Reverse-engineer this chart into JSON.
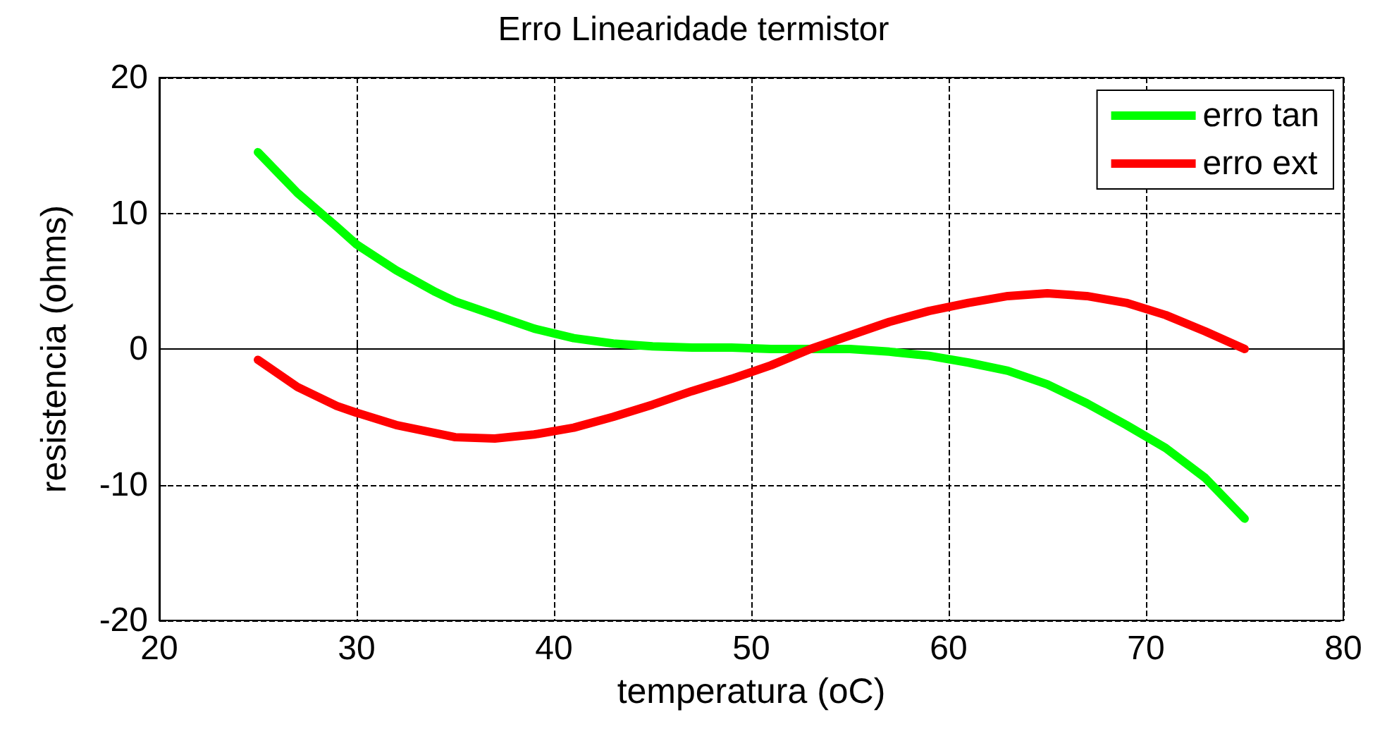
{
  "chart_data": {
    "type": "line",
    "title": "Erro Linearidade termistor",
    "xlabel": "temperatura (oC)",
    "ylabel": "resistencia (ohms)",
    "x": [
      25,
      27,
      29,
      30,
      32,
      34,
      35,
      37,
      39,
      41,
      43,
      45,
      47,
      49,
      51,
      53,
      55,
      57,
      59,
      61,
      63,
      65,
      67,
      69,
      71,
      73,
      75
    ],
    "series": [
      {
        "name": "erro tan",
        "color": "#00ff00",
        "values": [
          14.5,
          11.5,
          9,
          7.7,
          5.8,
          4.2,
          3.5,
          2.5,
          1.5,
          0.8,
          0.4,
          0.2,
          0.1,
          0.1,
          0,
          0,
          0,
          -0.2,
          -0.5,
          -1,
          -1.6,
          -2.6,
          -4,
          -5.6,
          -7.3,
          -9.5,
          -12.5
        ]
      },
      {
        "name": "erro ext",
        "color": "#ff0000",
        "values": [
          -0.8,
          -2.8,
          -4.2,
          -4.7,
          -5.6,
          -6.2,
          -6.5,
          -6.6,
          -6.3,
          -5.8,
          -5,
          -4.1,
          -3.1,
          -2.2,
          -1.2,
          0,
          1,
          2,
          2.8,
          3.4,
          3.9,
          4.1,
          3.9,
          3.4,
          2.5,
          1.3,
          0
        ]
      }
    ],
    "xlim": [
      20,
      80
    ],
    "xticks": [
      20,
      30,
      40,
      50,
      60,
      70,
      80
    ],
    "ylim": [
      -20,
      20
    ],
    "yticks": [
      -20,
      -10,
      0,
      10,
      20
    ],
    "grid": true,
    "legend": "top right",
    "marker": "none",
    "line_style": "solid"
  }
}
